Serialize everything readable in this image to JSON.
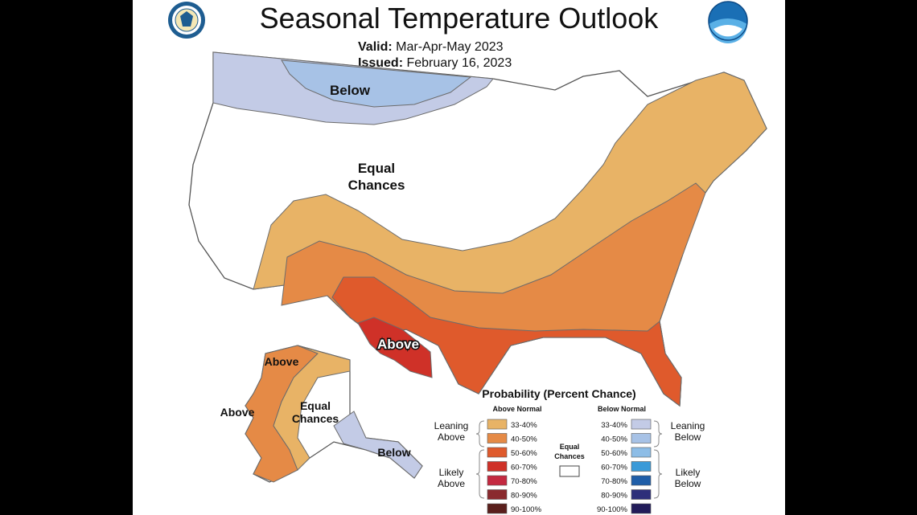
{
  "title": "Seasonal Temperature Outlook",
  "valid_label": "Valid:",
  "valid_value": "Mar-Apr-May 2023",
  "issued_label": "Issued:",
  "issued_value": "February 16, 2023",
  "map_labels": {
    "below_north": "Below",
    "equal_main_1": "Equal",
    "equal_main_2": "Chances",
    "above_texas": "Above",
    "above_ak_north": "Above",
    "above_ak_west": "Above",
    "equal_ak_1": "Equal",
    "equal_ak_2": "Chances",
    "below_ak_se": "Below"
  },
  "legend": {
    "title": "Probability (Percent Chance)",
    "above_header": "Above Normal",
    "below_header": "Below Normal",
    "equal_label_1": "Equal",
    "equal_label_2": "Chances",
    "leaning_above_1": "Leaning",
    "leaning_above_2": "Above",
    "likely_above_1": "Likely",
    "likely_above_2": "Above",
    "leaning_below_1": "Leaning",
    "leaning_below_2": "Below",
    "likely_below_1": "Likely",
    "likely_below_2": "Below",
    "above_bins": [
      {
        "range": "33-40%",
        "color": "#e8b366"
      },
      {
        "range": "40-50%",
        "color": "#e58a46"
      },
      {
        "range": "50-60%",
        "color": "#df5a2c"
      },
      {
        "range": "60-70%",
        "color": "#cf3128"
      },
      {
        "range": "70-80%",
        "color": "#c42940"
      },
      {
        "range": "80-90%",
        "color": "#8a2a2e"
      },
      {
        "range": "90-100%",
        "color": "#5a1f1c"
      }
    ],
    "below_bins": [
      {
        "range": "33-40%",
        "color": "#c3cbe6"
      },
      {
        "range": "40-50%",
        "color": "#a7c2e6"
      },
      {
        "range": "50-60%",
        "color": "#8dbde6"
      },
      {
        "range": "60-70%",
        "color": "#3a9ad8"
      },
      {
        "range": "70-80%",
        "color": "#1f5ea8"
      },
      {
        "range": "80-90%",
        "color": "#2d2f7a"
      },
      {
        "range": "90-100%",
        "color": "#221c5a"
      }
    ]
  }
}
